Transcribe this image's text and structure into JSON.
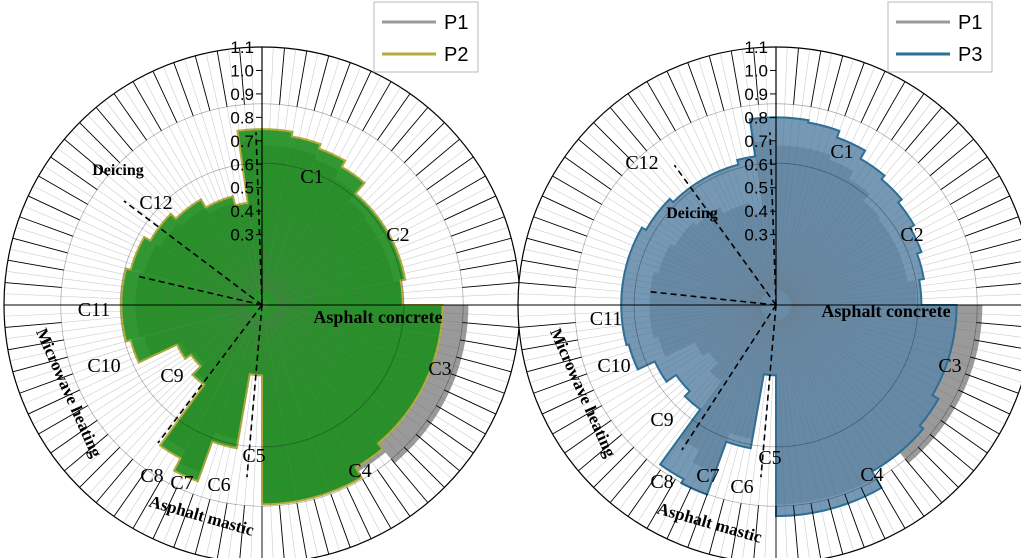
{
  "chart_data": [
    {
      "type": "polar-bar",
      "title": "",
      "radial_axis": {
        "range": [
          0,
          1.1
        ],
        "ticks": [
          "0.3",
          "0.4",
          "0.5",
          "0.6",
          "0.7",
          "0.8",
          "0.9",
          "1.0",
          "1.1"
        ]
      },
      "legend": {
        "placement": "top-right",
        "entries": [
          "P1",
          "P2"
        ]
      },
      "series": [
        {
          "name": "P1",
          "color": "#9a9a9a"
        },
        {
          "name": "P2",
          "color": "#1e8f1e",
          "edge": "#b4ac3c"
        }
      ],
      "category_labels": [
        "C1",
        "C2",
        "C3",
        "C4",
        "C5",
        "C6",
        "C7",
        "C8",
        "C9",
        "C10",
        "C11",
        "C12"
      ],
      "group_labels": [
        "Asphalt concrete",
        "Asphalt mastic",
        "Microwave heating",
        "Deicing"
      ],
      "segments": [
        {
          "start": 0,
          "end": 10,
          "P1": 0.68,
          "P2": 0.75
        },
        {
          "start": 10,
          "end": 20,
          "P1": 0.68,
          "P2": 0.73
        },
        {
          "start": 20,
          "end": 30,
          "P1": 0.66,
          "P2": 0.71
        },
        {
          "start": 30,
          "end": 40,
          "P1": 0.62,
          "P2": 0.68
        },
        {
          "start": 40,
          "end": 50,
          "P1": 0.58,
          "P2": 0.62
        },
        {
          "start": 50,
          "end": 60,
          "P1": 0.57,
          "P2": 0.62
        },
        {
          "start": 60,
          "end": 70,
          "P1": 0.57,
          "P2": 0.62
        },
        {
          "start": 70,
          "end": 80,
          "P1": 0.57,
          "P2": 0.62
        },
        {
          "start": 80,
          "end": 90,
          "P1": 0.6,
          "P2": 0.6
        },
        {
          "start": 90,
          "end": 100,
          "P1": 0.88,
          "P2": 0.77
        },
        {
          "start": 100,
          "end": 110,
          "P1": 0.88,
          "P2": 0.77
        },
        {
          "start": 110,
          "end": 120,
          "P1": 0.88,
          "P2": 0.77
        },
        {
          "start": 120,
          "end": 130,
          "P1": 0.88,
          "P2": 0.77
        },
        {
          "start": 130,
          "end": 140,
          "P1": 0.88,
          "P2": 0.77
        },
        {
          "start": 140,
          "end": 150,
          "P1": 0.82,
          "P2": 0.8
        },
        {
          "start": 150,
          "end": 160,
          "P1": 0.85,
          "P2": 0.85
        },
        {
          "start": 160,
          "end": 170,
          "P1": 0.85,
          "P2": 0.85
        },
        {
          "start": 170,
          "end": 180,
          "P1": 0.85,
          "P2": 0.85
        },
        {
          "start": 180,
          "end": 190,
          "P1": 0.3,
          "P2": 0.3
        },
        {
          "start": 190,
          "end": 200,
          "P1": 0.58,
          "P2": 0.62
        },
        {
          "start": 200,
          "end": 208,
          "P1": 0.76,
          "P2": 0.8
        },
        {
          "start": 208,
          "end": 216,
          "P1": 0.7,
          "P2": 0.74
        },
        {
          "start": 216,
          "end": 225,
          "P1": 0.4,
          "P2": 0.42
        },
        {
          "start": 225,
          "end": 235,
          "P1": 0.35,
          "P2": 0.37
        },
        {
          "start": 235,
          "end": 245,
          "P1": 0.38,
          "P2": 0.4
        },
        {
          "start": 245,
          "end": 255,
          "P1": 0.52,
          "P2": 0.58
        },
        {
          "start": 255,
          "end": 270,
          "P1": 0.54,
          "P2": 0.6
        },
        {
          "start": 270,
          "end": 285,
          "P1": 0.54,
          "P2": 0.6
        },
        {
          "start": 285,
          "end": 300,
          "P1": 0.52,
          "P2": 0.58
        },
        {
          "start": 300,
          "end": 315,
          "P1": 0.5,
          "P2": 0.55
        },
        {
          "start": 315,
          "end": 330,
          "P1": 0.48,
          "P2": 0.52
        },
        {
          "start": 330,
          "end": 345,
          "P1": 0.45,
          "P2": 0.48
        },
        {
          "start": 345,
          "end": 352,
          "P1": 0.4,
          "P2": 0.44
        },
        {
          "start": 352,
          "end": 360,
          "P1": 0.7,
          "P2": 0.75
        }
      ]
    },
    {
      "type": "polar-bar",
      "title": "",
      "radial_axis": {
        "range": [
          0,
          1.1
        ],
        "ticks": [
          "0.3",
          "0.4",
          "0.5",
          "0.6",
          "0.7",
          "0.8",
          "0.9",
          "1.0",
          "1.1"
        ]
      },
      "legend": {
        "placement": "top-right",
        "entries": [
          "P1",
          "P3"
        ]
      },
      "series": [
        {
          "name": "P1",
          "color": "#9a9a9a"
        },
        {
          "name": "P3",
          "color": "#5d86a8",
          "edge": "#2b6f96"
        }
      ],
      "category_labels": [
        "C1",
        "C2",
        "C3",
        "C4",
        "C5",
        "C6",
        "C7",
        "C8",
        "C9",
        "C10",
        "C11",
        "C12"
      ],
      "group_labels": [
        "Asphalt concrete",
        "Asphalt mastic",
        "Microwave heating",
        "Deicing"
      ],
      "segments": [
        {
          "start": 0,
          "end": 10,
          "P1": 0.68,
          "P3": 0.8
        },
        {
          "start": 10,
          "end": 20,
          "P1": 0.68,
          "P3": 0.79
        },
        {
          "start": 20,
          "end": 30,
          "P1": 0.66,
          "P3": 0.76
        },
        {
          "start": 30,
          "end": 40,
          "P1": 0.62,
          "P3": 0.72
        },
        {
          "start": 40,
          "end": 50,
          "P1": 0.58,
          "P3": 0.7
        },
        {
          "start": 50,
          "end": 60,
          "P1": 0.57,
          "P3": 0.68
        },
        {
          "start": 60,
          "end": 70,
          "P1": 0.57,
          "P3": 0.66
        },
        {
          "start": 70,
          "end": 80,
          "P1": 0.57,
          "P3": 0.64
        },
        {
          "start": 80,
          "end": 90,
          "P1": 0.6,
          "P3": 0.62
        },
        {
          "start": 90,
          "end": 100,
          "P1": 0.88,
          "P3": 0.77
        },
        {
          "start": 100,
          "end": 110,
          "P1": 0.88,
          "P3": 0.77
        },
        {
          "start": 110,
          "end": 120,
          "P1": 0.88,
          "P3": 0.77
        },
        {
          "start": 120,
          "end": 130,
          "P1": 0.88,
          "P3": 0.8
        },
        {
          "start": 130,
          "end": 140,
          "P1": 0.88,
          "P3": 0.82
        },
        {
          "start": 140,
          "end": 150,
          "P1": 0.82,
          "P3": 0.82
        },
        {
          "start": 150,
          "end": 160,
          "P1": 0.85,
          "P3": 0.9
        },
        {
          "start": 160,
          "end": 170,
          "P1": 0.85,
          "P3": 0.9
        },
        {
          "start": 170,
          "end": 180,
          "P1": 0.85,
          "P3": 0.9
        },
        {
          "start": 180,
          "end": 190,
          "P1": 0.3,
          "P3": 0.3
        },
        {
          "start": 190,
          "end": 200,
          "P1": 0.58,
          "P3": 0.62
        },
        {
          "start": 200,
          "end": 208,
          "P1": 0.76,
          "P3": 0.86
        },
        {
          "start": 208,
          "end": 216,
          "P1": 0.7,
          "P3": 0.84
        },
        {
          "start": 216,
          "end": 225,
          "P1": 0.4,
          "P3": 0.55
        },
        {
          "start": 225,
          "end": 235,
          "P1": 0.35,
          "P3": 0.52
        },
        {
          "start": 235,
          "end": 245,
          "P1": 0.38,
          "P3": 0.57
        },
        {
          "start": 245,
          "end": 255,
          "P1": 0.52,
          "P3": 0.65
        },
        {
          "start": 255,
          "end": 270,
          "P1": 0.54,
          "P3": 0.66
        },
        {
          "start": 270,
          "end": 285,
          "P1": 0.54,
          "P3": 0.66
        },
        {
          "start": 285,
          "end": 300,
          "P1": 0.52,
          "P3": 0.66
        },
        {
          "start": 300,
          "end": 315,
          "P1": 0.5,
          "P3": 0.64
        },
        {
          "start": 315,
          "end": 330,
          "P1": 0.48,
          "P3": 0.62
        },
        {
          "start": 330,
          "end": 345,
          "P1": 0.45,
          "P3": 0.62
        },
        {
          "start": 345,
          "end": 352,
          "P1": 0.4,
          "P3": 0.64
        },
        {
          "start": 352,
          "end": 360,
          "P1": 0.7,
          "P3": 0.8
        }
      ]
    }
  ]
}
